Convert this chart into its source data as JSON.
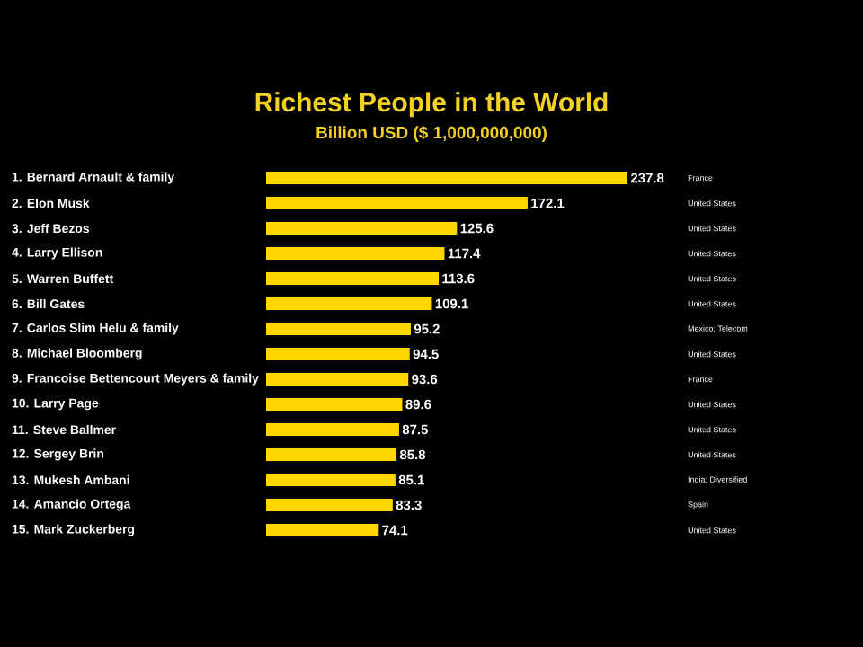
{
  "chart_data": {
    "type": "bar",
    "orientation": "horizontal",
    "title": "Richest People in the World",
    "subtitle": "Billion USD ($ 1,000,000,000)",
    "categories": [
      "1. Bernard Arnault & family",
      "2. Elon Musk",
      "3. Jeff Bezos",
      "4. Larry Ellison",
      "5. Warren Buffett",
      "6. Bill Gates",
      "7. Carlos Slim Helu & family",
      "8. Michael Bloomberg",
      "9. Francoise Bettencourt Meyers & family",
      "10. Larry Page",
      "11. Steve Ballmer",
      "12. Sergey Brin",
      "13. Mukesh Ambani",
      "14. Amancio Ortega",
      "15. Mark Zuckerberg"
    ],
    "values": [
      237.8,
      172.1,
      125.6,
      117.4,
      113.6,
      109.1,
      95.2,
      94.5,
      93.6,
      89.6,
      87.5,
      85.8,
      85.1,
      83.3,
      74.1
    ],
    "color": "#ffd700",
    "data_labels": true,
    "annotations": [
      "France",
      "United States",
      "United States",
      "United States",
      "United States",
      "United States",
      "Mexico; Telecom",
      "United States",
      "France",
      "United States",
      "United States",
      "United States",
      "India; Diversified",
      "Spain",
      "United States"
    ]
  }
}
